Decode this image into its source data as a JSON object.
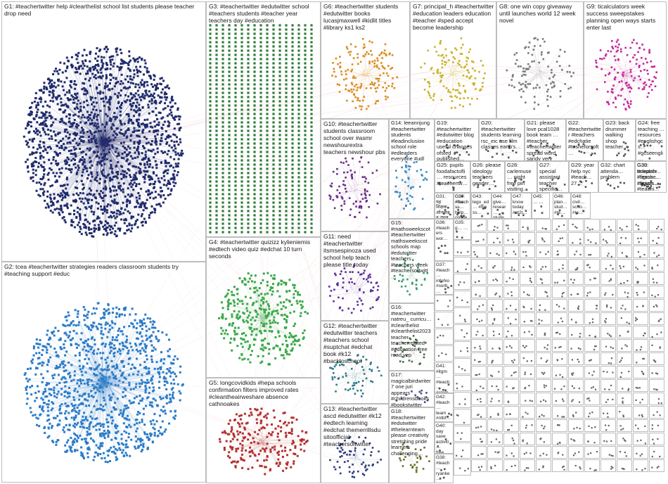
{
  "graph": {
    "title": "",
    "groups": [
      {
        "id": "G1",
        "label": "G1: #teachertwitter help #clearthelist school list students please teacher drop need",
        "color": "#1f2a6b",
        "density": 0.95
      },
      {
        "id": "G2",
        "label": "G2: tcea #teachertwitter strategies readers classroom students try #teaching support #educ",
        "color": "#2b7bc7",
        "density": 0.7
      },
      {
        "id": "G3",
        "label": "G3: #teachertwitter #edutwitter school #teachers students #teacher year teachers day #education",
        "color": "#2e7d3a",
        "density": 0.9
      },
      {
        "id": "G4",
        "label": "G4: #teachertwitter quizizz kylieniemis #edtech video quiz #edchat 10 turn seconds",
        "color": "#3aa84a",
        "density": 0.6
      },
      {
        "id": "G5",
        "label": "G5: longcovidkids #hepa schools confirmation filters improved rates #cleantheairwesharе absence cathnoakes",
        "color": "#b33030",
        "density": 0.5
      },
      {
        "id": "G6",
        "label": "G6: #teachertwitter students #edutwitter books lucasjmaxwell #kidlit titles #library ks1 ks2",
        "color": "#d98a1e",
        "density": 0.5
      },
      {
        "id": "G7",
        "label": "G7: principal_h #teachertwitter #education leaders education #teacher #sped accept become leadership",
        "color": "#c9b22a",
        "density": 0.45
      },
      {
        "id": "G8",
        "label": "G8: one win copy giveaway until launches world 12 week novel",
        "color": "#7a7a7a",
        "density": 0.35
      },
      {
        "id": "G9",
        "label": "G9: ticalculators week success sweepstakes planning open ways starts enter last",
        "color": "#c2289a",
        "density": 0.5
      },
      {
        "id": "G10",
        "label": "G10: #teachertwitter students classroom school over #asmr newshourextra teachers newshour pbs",
        "color": "#6a2c8a",
        "density": 0.4
      },
      {
        "id": "G11",
        "label": "G11: need #teachertwitter itsmsespinoza used school help teach please title today",
        "color": "#5a2c9a",
        "density": 0.4
      },
      {
        "id": "G12",
        "label": "G12: #teachertwitter #edutwitter teachers #teachers school #suptchat #edchat book #k12 #backtoschool",
        "color": "#2a7a8a",
        "density": 0.4
      },
      {
        "id": "G13",
        "label": "G13: #teachertwitter ascd #edutwitter #k12 #edtech learning #edchat themerrillsdu sitoofficial #teachersoftwitter",
        "color": "#2a3a7a",
        "density": 0.4
      },
      {
        "id": "G14",
        "label": "G14: leeannjung #teachertwitter students #leadinclusion school role #edleaders everyone #udl",
        "color": "#3a8ac0",
        "density": 0.4
      },
      {
        "id": "G15",
        "label": "G15: #mathsweekscot #teachertwitter mathsweekscot schools map #edutwitter teachers #teachers week #teachersoftwitt…",
        "color": "#3a9a6a",
        "density": 0.35
      },
      {
        "id": "G16",
        "label": "G16: #teachertwitter natreu_ curricu… #clearthelist #clearthelist2023 teacher teacherrelated #education free read yep",
        "color": "#4a6a4a",
        "density": 0.35
      },
      {
        "id": "G17",
        "label": "G17: magicalbirdwriter7 one juri appears #childrensbooks #bookstwitter #kids #colour #illustrations…",
        "color": "#4a4a8a",
        "density": 0.3
      },
      {
        "id": "G18",
        "label": "G18: #teachertwitter #edutwitter #thelearnteam please creativity stretching pride learners challenging…",
        "color": "#6a6a2a",
        "density": 0.3
      },
      {
        "id": "G19",
        "label": "G19: #teachertwitter #edutwitter blog #education useful changes ofsted published…",
        "color": "#555555",
        "density": 0.25
      },
      {
        "id": "G20",
        "label": "G20: #teachertwitter students learning rsc_eic use film classes earth's…",
        "color": "#555555",
        "density": 0.25
      },
      {
        "id": "G21",
        "label": "G21: please love pcal1028 book team … #teacher #teachertwitter spread word sandy very",
        "color": "#555555",
        "density": 0.25
      },
      {
        "id": "G22",
        "label": "G22: #teachertwitter #teachers #edchatie #tesheforsoft…",
        "color": "#555555",
        "density": 0.25
      },
      {
        "id": "G23",
        "label": "G23: back drummer walking shop teacher…",
        "color": "#555555",
        "density": 0.25
      },
      {
        "id": "G24",
        "label": "G24: free teaching … resources #englishgcs… #gcseengli…",
        "color": "#555555",
        "density": 0.25
      },
      {
        "id": "G25",
        "label": "G25: pupils foodafactofli… resources #teachertw…",
        "color": "#555555",
        "density": 0.25
      },
      {
        "id": "G26",
        "label": "G26: please ideology teachers gender…",
        "color": "#555555",
        "density": 0.25
      },
      {
        "id": "G27",
        "label": "G27: special assistant teacher specific…",
        "color": "#555555",
        "density": 0.25
      },
      {
        "id": "G28",
        "label": "G28: carlemuse… night free pin visiting…",
        "color": "#555555",
        "density": 0.25
      },
      {
        "id": "G29",
        "label": "G29: year help nyc #teach… 27…",
        "color": "#555555",
        "density": 0.25
      },
      {
        "id": "G30",
        "label": "G30: template #figmae… #figjam… #teachi…",
        "color": "#555555",
        "density": 0.25
      },
      {
        "id": "G31",
        "label": "G31: यह शिक्षक ऑनलाइन उपज",
        "color": "#555555",
        "density": 0.25
      },
      {
        "id": "G32",
        "label": "G32: chart attenda… problem",
        "color": "#555555",
        "density": 0.25
      },
      {
        "id": "G33",
        "label": "G33: #clearth… #teach… #teach…",
        "color": "#555555",
        "density": 0.25
      },
      {
        "id": "G34",
        "label": "G34: #ftw ss…",
        "color": "#555555",
        "density": 0.25
      },
      {
        "id": "G35",
        "label": "G35: g… …",
        "color": "#555555",
        "density": 0.25
      },
      {
        "id": "G36",
        "label": "G36: #teachers wor…",
        "color": "#555555",
        "density": 0.25
      },
      {
        "id": "G37",
        "label": "G37: #teach… infohio #surb… #warr…",
        "color": "#555555",
        "density": 0.25
      },
      {
        "id": "G38",
        "label": "G38: #teach… ryanke…",
        "color": "#555555",
        "density": 0.25
      },
      {
        "id": "G39",
        "label": "G39: #teach… help… online…",
        "color": "#555555",
        "density": 0.25
      },
      {
        "id": "G40",
        "label": "G40: day save activiti… free…",
        "color": "#555555",
        "density": 0.25
      },
      {
        "id": "G41",
        "label": "G41: #itgm… #teach… #stem…",
        "color": "#555555",
        "density": 0.25
      },
      {
        "id": "G42",
        "label": "G42: #teach… team #ntbf…",
        "color": "#555555",
        "density": 0.25
      },
      {
        "id": "G43",
        "label": "G43: lego_ed… #ftw ss…",
        "color": "#555555",
        "density": 0.25
      },
      {
        "id": "G44",
        "label": "G44: give… resear… stude…",
        "color": "#555555",
        "density": 0.25
      },
      {
        "id": "G45",
        "label": "G45: … …",
        "color": "#555555",
        "density": 0.25
      },
      {
        "id": "G46",
        "label": "G46: plan… stud… #te…",
        "color": "#555555",
        "density": 0.25
      },
      {
        "id": "G47",
        "label": "G47: know today #nt2t…",
        "color": "#555555",
        "density": 0.25
      },
      {
        "id": "G48",
        "label": "G48: civil… scho… #te…",
        "color": "#555555",
        "density": 0.25
      }
    ]
  }
}
